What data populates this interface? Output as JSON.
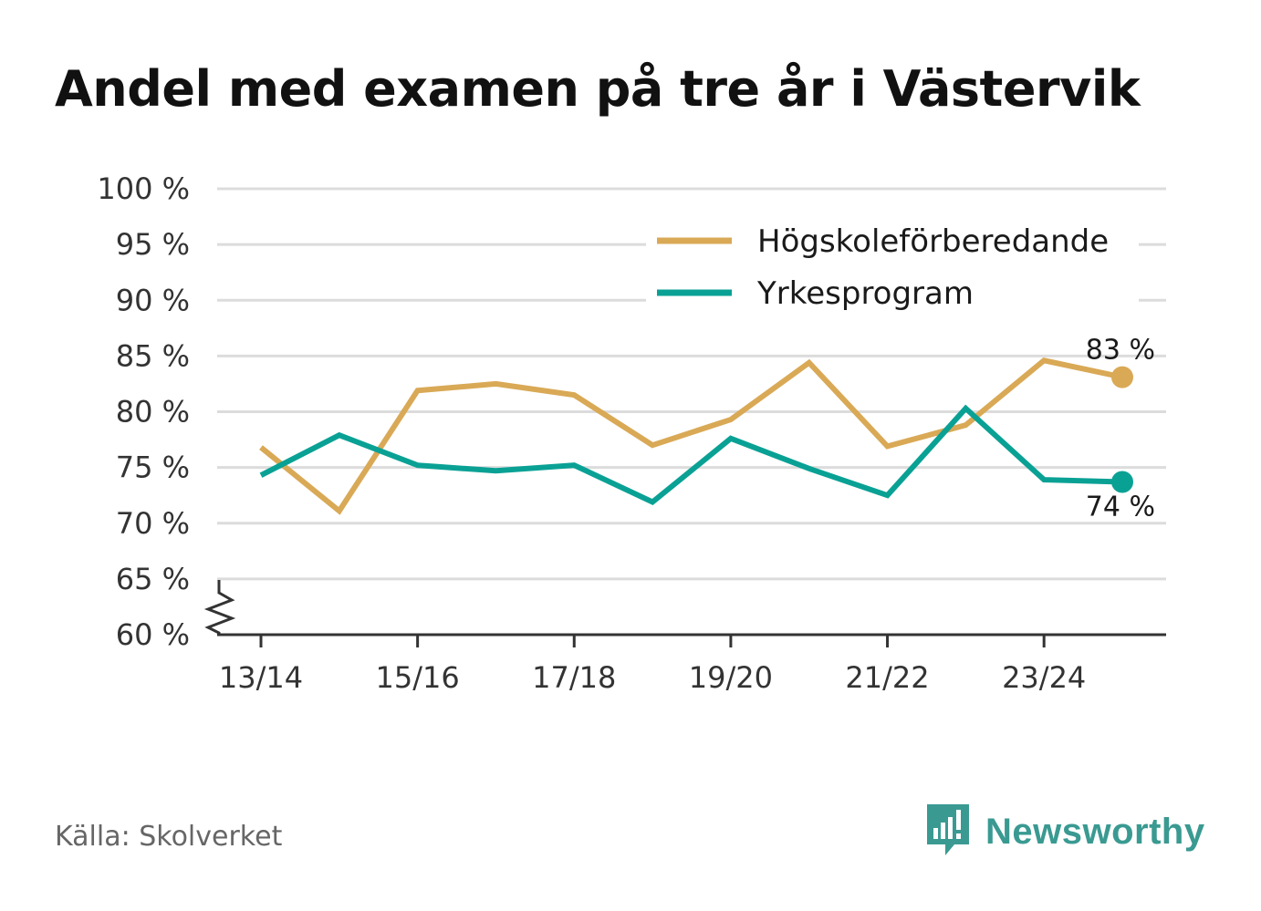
{
  "title": "Andel med examen på tre år i Västervik",
  "source": "Källa: Skolverket",
  "brand": {
    "name": "Newsworthy",
    "icon": "newsworthy-logo-icon",
    "color": "#3a9a92"
  },
  "chart_data": {
    "type": "line",
    "title": "Andel med examen på tre år i Västervik",
    "x": [
      "13/14",
      "14/15",
      "15/16",
      "16/17",
      "17/18",
      "18/19",
      "19/20",
      "20/21",
      "21/22",
      "22/23",
      "23/24",
      "24/25"
    ],
    "x_tick_labels": [
      "13/14",
      "15/16",
      "17/18",
      "19/20",
      "21/22",
      "23/24"
    ],
    "ylim": [
      60,
      100
    ],
    "y_ticks": [
      60,
      65,
      70,
      75,
      80,
      85,
      90,
      95,
      100
    ],
    "y_tick_labels": [
      "60 %",
      "65 %",
      "70 %",
      "75 %",
      "80 %",
      "85 %",
      "90 %",
      "95 %",
      "100 %"
    ],
    "grid": true,
    "axis_break": true,
    "legend_position": "top-right",
    "series": [
      {
        "name": "Högskoleförberedande",
        "color": "#d9a956",
        "values": [
          76.8,
          71.1,
          81.9,
          82.5,
          81.5,
          77.0,
          79.3,
          84.4,
          76.9,
          78.8,
          84.6,
          83.1
        ],
        "end_label": "83 %"
      },
      {
        "name": "Yrkesprogram",
        "color": "#0aa195",
        "values": [
          74.3,
          77.9,
          75.2,
          74.7,
          75.2,
          71.9,
          77.6,
          74.9,
          72.5,
          80.3,
          73.9,
          73.7
        ],
        "end_label": "74 %"
      }
    ]
  }
}
